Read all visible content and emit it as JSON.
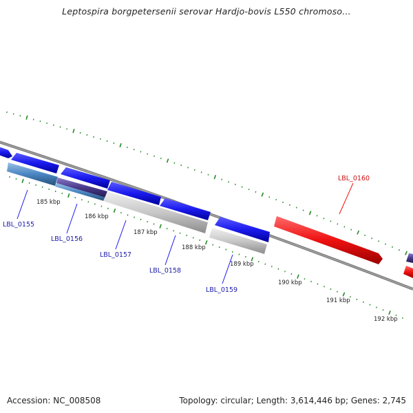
{
  "title": "Leptospira borgpetersenii serovar Hardjo-bovis L550 chromoso...",
  "footer": {
    "accession": "Accession: NC_008508",
    "stats": "Topology: circular; Length: 3,614,446 bp; Genes: 2,745"
  },
  "colors": {
    "forward_gene": "#1a1aee",
    "reverse_gene": "#c0c0c0",
    "selected_gene": "#ee1111",
    "tick": "#228822",
    "backbone": "#808080",
    "label_forward": "#1a1aaa",
    "label_selected": "#cc1111"
  },
  "kbp_labels": [
    "185 kbp",
    "186 kbp",
    "187 kbp",
    "188 kbp",
    "189 kbp",
    "190 kbp",
    "191 kbp",
    "192 kbp"
  ],
  "gene_labels": [
    {
      "text": "LBL_0155",
      "color": "blue"
    },
    {
      "text": "LBL_0156",
      "color": "blue"
    },
    {
      "text": "LBL_0157",
      "color": "blue"
    },
    {
      "text": "LBL_0158",
      "color": "blue"
    },
    {
      "text": "LBL_0159",
      "color": "blue"
    },
    {
      "text": "LBL_0160",
      "color": "red"
    }
  ]
}
